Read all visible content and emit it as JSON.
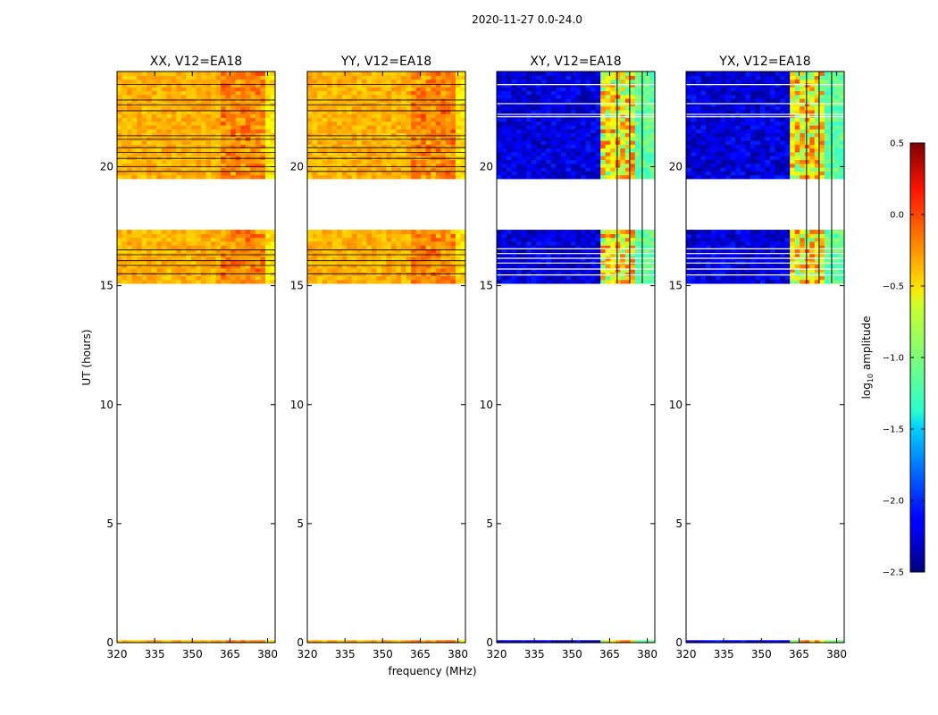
{
  "suptitle": "2020-11-27 0.0-24.0",
  "chart_data": {
    "type": "heatmap",
    "ylabel": "UT (hours)",
    "xlabel": "frequency (MHz)",
    "xlim": [
      320,
      383
    ],
    "ylim": [
      0,
      24
    ],
    "xticks": [
      320,
      335,
      350,
      365,
      380
    ],
    "yticks": [
      0,
      5,
      10,
      15,
      20
    ],
    "time_ranges_with_data": [
      [
        0,
        0.1
      ],
      [
        15.1,
        17.35
      ],
      [
        19.5,
        24
      ]
    ],
    "panels": [
      {
        "title": "XX, V12=EA18",
        "kind": "parallel"
      },
      {
        "title": "YY, V12=EA18",
        "kind": "parallel"
      },
      {
        "title": "XY, V12=EA18",
        "kind": "cross"
      },
      {
        "title": "YX, V12=EA18",
        "kind": "cross"
      }
    ],
    "colorbar": {
      "label_main": "log",
      "label_sub": "10",
      "label_end": " amplitude",
      "colormap": "jet",
      "range": [
        -2.5,
        0.5
      ],
      "ticks": [
        0.5,
        0.0,
        -0.5,
        -1.0,
        -1.5,
        -2.0,
        -2.5
      ],
      "tick_labels": [
        "0.5",
        "0.0",
        "−0.5",
        "−1.0",
        "−1.5",
        "−2.0",
        "−2.5"
      ]
    }
  }
}
